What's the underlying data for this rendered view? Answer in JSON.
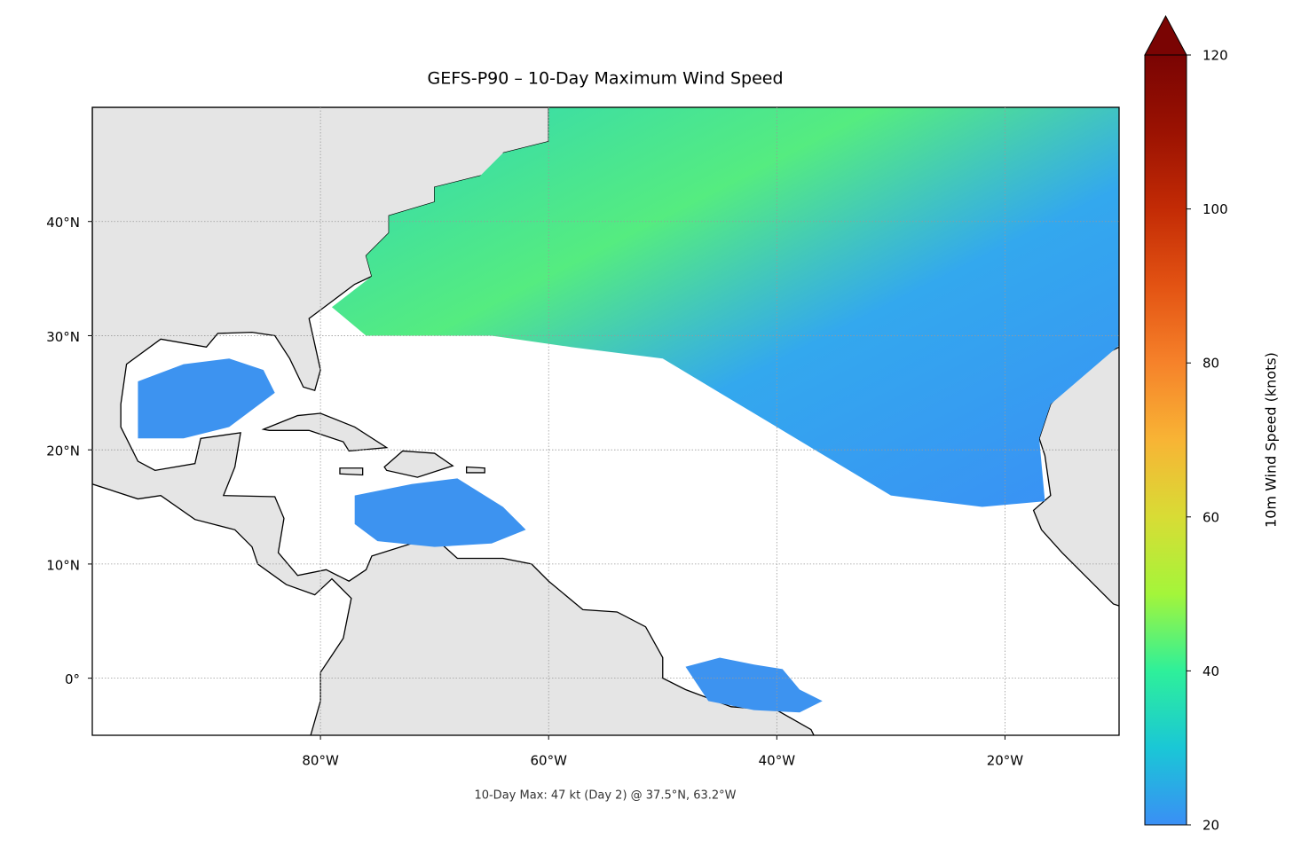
{
  "chart_data": {
    "type": "map",
    "title": "GEFS-P90 – 10-Day Maximum Wind Speed",
    "annotation": "10-Day Max: 47 kt (Day 2) @ 37.5°N, 63.2°W",
    "xlim": [
      -100,
      -10
    ],
    "ylim": [
      -5,
      50
    ],
    "xticks": [
      {
        "value": -80,
        "label": "80°W"
      },
      {
        "value": -60,
        "label": "60°W"
      },
      {
        "value": -40,
        "label": "40°W"
      },
      {
        "value": -20,
        "label": "20°W"
      }
    ],
    "yticks": [
      {
        "value": 0,
        "label": "0°"
      },
      {
        "value": 10,
        "label": "10°N"
      },
      {
        "value": 20,
        "label": "20°N"
      },
      {
        "value": 30,
        "label": "30°N"
      },
      {
        "value": 40,
        "label": "40°N"
      }
    ],
    "grid": true,
    "colorbar": {
      "label": "10m Wind Speed (knots)",
      "lim": [
        20,
        120
      ],
      "ticks": [
        20,
        40,
        60,
        80,
        100,
        120
      ],
      "extend": "max",
      "colors": [
        "#3a8ff5",
        "#1ac7d6",
        "#2ef09a",
        "#a4f53a",
        "#d8dc35",
        "#f8b435",
        "#f6822a",
        "#e35313",
        "#c32b05",
        "#9b1202",
        "#7a0403"
      ]
    }
  }
}
